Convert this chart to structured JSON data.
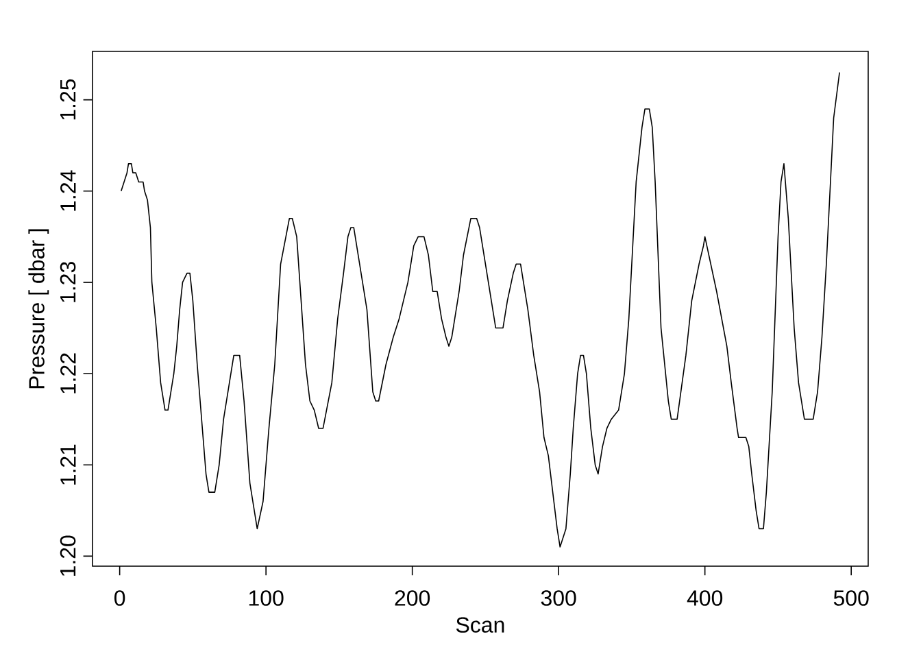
{
  "chart_data": {
    "type": "line",
    "xlabel": "Scan",
    "ylabel": "Pressure [ dbar ]",
    "color": "#000000",
    "x": [
      1,
      3,
      5,
      6,
      8,
      9,
      11,
      13,
      16,
      17,
      19,
      21,
      22,
      25,
      28,
      31,
      33,
      37,
      39,
      41,
      43,
      46,
      48,
      50,
      53,
      57,
      59,
      61,
      65,
      68,
      71,
      78,
      82,
      85,
      89,
      92,
      94,
      98,
      102,
      106,
      110,
      116,
      118,
      121,
      127,
      130,
      133,
      136,
      139,
      145,
      149,
      153,
      156,
      158,
      160,
      166,
      169,
      173,
      175,
      177,
      182,
      187,
      191,
      197,
      201,
      204,
      208,
      211,
      214,
      217,
      220,
      223,
      225,
      227,
      232,
      235,
      240,
      244,
      246,
      252,
      257,
      262,
      265,
      269,
      271,
      274,
      279,
      283,
      287,
      290,
      293,
      296,
      299,
      300,
      301,
      305,
      308,
      310,
      313,
      315,
      317,
      319,
      322,
      325,
      327,
      330,
      333,
      336,
      341,
      345,
      348,
      353,
      357,
      359,
      362,
      364,
      366,
      370,
      375,
      377,
      381,
      387,
      391,
      396,
      399,
      400,
      404,
      408,
      415,
      418,
      422,
      423,
      428,
      430,
      432,
      435,
      437,
      440,
      442,
      446,
      450,
      452,
      454,
      457,
      461,
      464,
      468,
      474,
      477,
      480,
      483,
      488,
      492
    ],
    "values": [
      1.24,
      1.241,
      1.242,
      1.243,
      1.243,
      1.242,
      1.242,
      1.241,
      1.241,
      1.24,
      1.239,
      1.236,
      1.23,
      1.225,
      1.219,
      1.216,
      1.216,
      1.22,
      1.223,
      1.227,
      1.23,
      1.231,
      1.231,
      1.228,
      1.221,
      1.213,
      1.209,
      1.207,
      1.207,
      1.21,
      1.215,
      1.222,
      1.222,
      1.217,
      1.208,
      1.205,
      1.203,
      1.206,
      1.214,
      1.221,
      1.232,
      1.237,
      1.237,
      1.235,
      1.221,
      1.217,
      1.216,
      1.214,
      1.214,
      1.219,
      1.226,
      1.231,
      1.235,
      1.236,
      1.236,
      1.23,
      1.227,
      1.218,
      1.217,
      1.217,
      1.221,
      1.224,
      1.226,
      1.23,
      1.234,
      1.235,
      1.235,
      1.233,
      1.229,
      1.229,
      1.226,
      1.224,
      1.223,
      1.224,
      1.229,
      1.233,
      1.237,
      1.237,
      1.236,
      1.23,
      1.225,
      1.225,
      1.228,
      1.231,
      1.232,
      1.232,
      1.227,
      1.222,
      1.218,
      1.213,
      1.211,
      1.207,
      1.203,
      1.202,
      1.201,
      1.203,
      1.209,
      1.214,
      1.22,
      1.222,
      1.222,
      1.22,
      1.214,
      1.21,
      1.209,
      1.212,
      1.214,
      1.215,
      1.216,
      1.22,
      1.226,
      1.241,
      1.247,
      1.249,
      1.249,
      1.247,
      1.241,
      1.225,
      1.217,
      1.215,
      1.215,
      1.222,
      1.228,
      1.232,
      1.234,
      1.235,
      1.232,
      1.229,
      1.223,
      1.219,
      1.214,
      1.213,
      1.213,
      1.212,
      1.209,
      1.205,
      1.203,
      1.203,
      1.207,
      1.218,
      1.235,
      1.241,
      1.243,
      1.237,
      1.225,
      1.219,
      1.215,
      1.215,
      1.218,
      1.224,
      1.232,
      1.248,
      1.253
    ],
    "xlim": [
      -18.6,
      511.6
    ],
    "ylim": [
      1.1989,
      1.2553
    ],
    "xticks": [
      0,
      100,
      200,
      300,
      400,
      500
    ],
    "yticks": [
      {
        "value": 1.2,
        "label": "1.20"
      },
      {
        "value": 1.21,
        "label": "1.21"
      },
      {
        "value": 1.22,
        "label": "1.22"
      },
      {
        "value": 1.23,
        "label": "1.23"
      },
      {
        "value": 1.24,
        "label": "1.24"
      },
      {
        "value": 1.25,
        "label": "1.25"
      }
    ]
  }
}
